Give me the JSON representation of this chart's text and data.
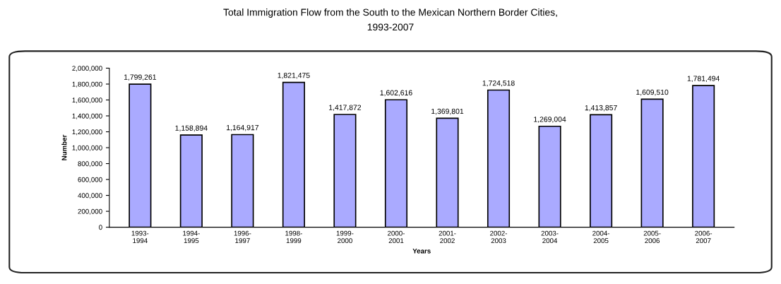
{
  "chart_data": {
    "type": "bar",
    "title": "Total Immigration Flow from the South to the Mexican Northern Border Cities,\n1993-2007",
    "xlabel": "Years",
    "ylabel": "Number",
    "categories": [
      "1993-\n1994",
      "1994-\n1995",
      "1996-\n1997",
      "1998-\n1999",
      "1999-\n2000",
      "2000-\n2001",
      "2001-\n2002",
      "2002-\n2003",
      "2003-\n2004",
      "2004-\n2005",
      "2005-\n2006",
      "2006-\n2007"
    ],
    "values": [
      1799261,
      1158894,
      1164917,
      1821475,
      1417872,
      1602616,
      1369801,
      1724518,
      1269004,
      1413857,
      1609510,
      1781494
    ],
    "color": "#aaaaff",
    "value_labels": [
      "1,799,261",
      "1,158,894",
      "1,164,917",
      "1,821,475",
      "1,417,872",
      "1,602,616",
      "1,369,801",
      "1,724,518",
      "1,269,004",
      "1,413,857",
      "1,609,510",
      "1,781,494"
    ],
    "ylim": [
      0,
      2000000
    ],
    "yticks": [
      {
        "value": 0,
        "label": "0"
      },
      {
        "value": 200000,
        "label": "200,000"
      },
      {
        "value": 400000,
        "label": "400,000"
      },
      {
        "value": 600000,
        "label": "600,000"
      },
      {
        "value": 800000,
        "label": "800,000"
      },
      {
        "value": 1000000,
        "label": "1,000,000"
      },
      {
        "value": 1200000,
        "label": "1,200,000"
      },
      {
        "value": 1400000,
        "label": "1,400,000"
      },
      {
        "value": 1600000,
        "label": "1,600,000"
      },
      {
        "value": 1800000,
        "label": "1,800,000"
      },
      {
        "value": 2000000,
        "label": "2,000,000"
      }
    ],
    "grid": false,
    "legend": false
  }
}
